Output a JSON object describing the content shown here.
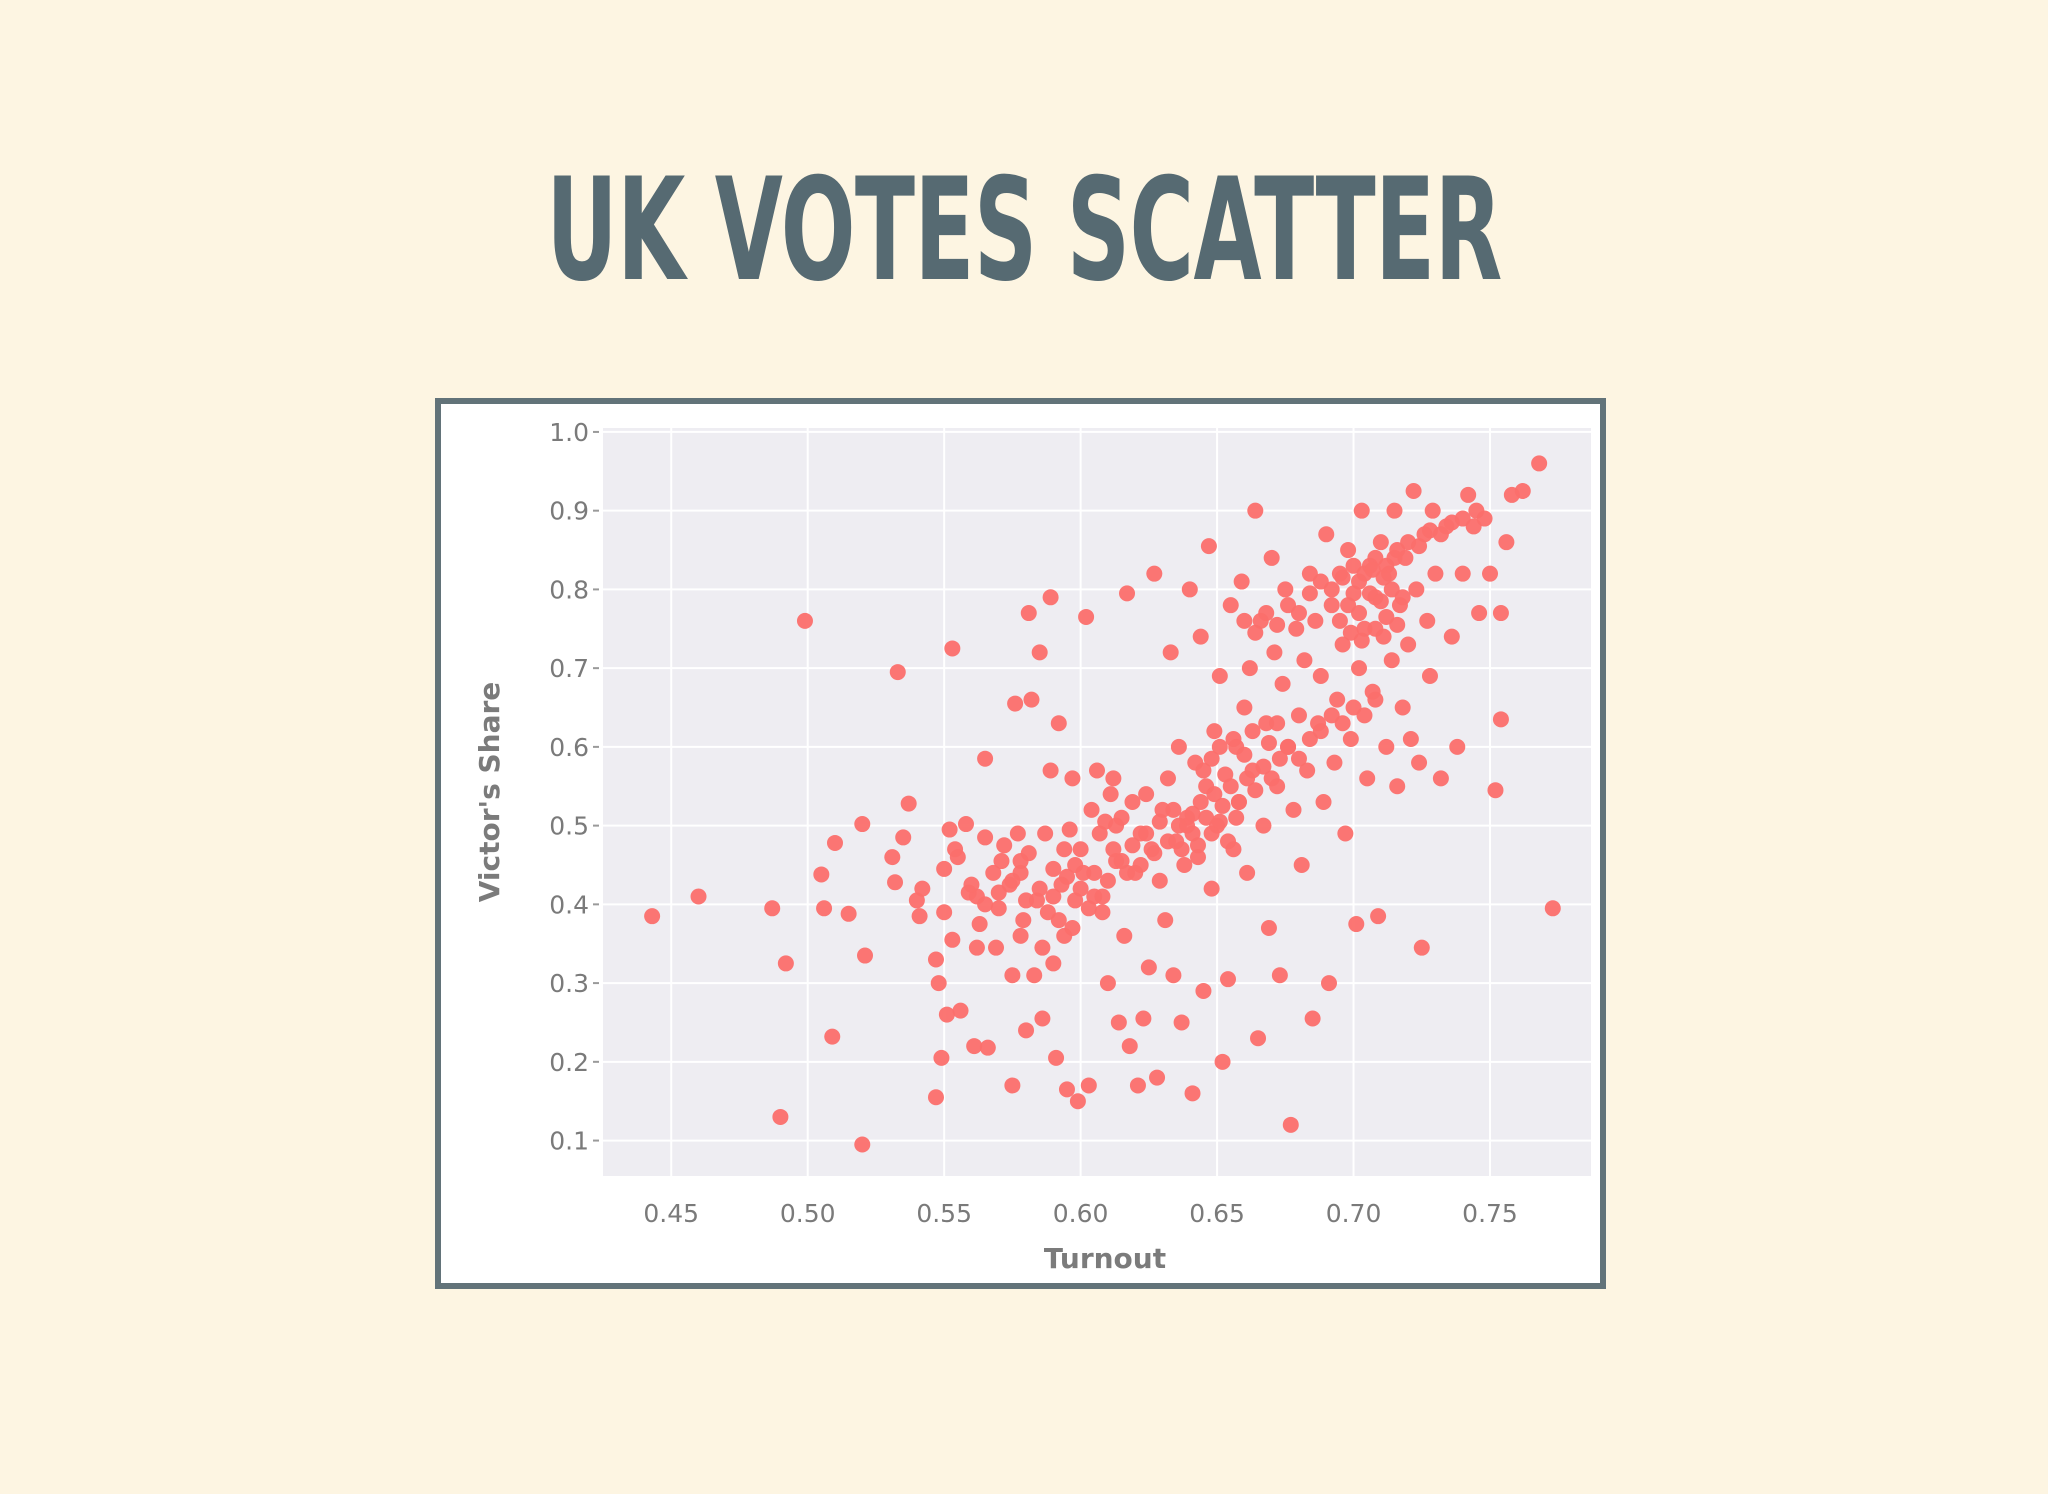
{
  "slide": {
    "title": "UK VOTES SCATTER"
  },
  "colors": {
    "background": "#fdf5e2",
    "title": "#566a72",
    "frame": "#627379",
    "plot_bg": "#eeedf2",
    "marker": "#fb6f6c"
  },
  "chart_data": {
    "type": "scatter",
    "title": "",
    "xlabel": "Turnout",
    "ylabel": "Victor's Share",
    "xlim": [
      0.425,
      0.787
    ],
    "ylim": [
      0.055,
      1.005
    ],
    "xticks": [
      "0.45",
      "0.50",
      "0.55",
      "0.60",
      "0.65",
      "0.70",
      "0.75"
    ],
    "yticks": [
      "0.1",
      "0.2",
      "0.3",
      "0.4",
      "0.5",
      "0.6",
      "0.7",
      "0.8",
      "0.9",
      "1.0"
    ],
    "grid": true,
    "legend": "none",
    "points": [
      [
        0.443,
        0.385
      ],
      [
        0.46,
        0.41
      ],
      [
        0.487,
        0.395
      ],
      [
        0.49,
        0.13
      ],
      [
        0.492,
        0.325
      ],
      [
        0.499,
        0.76
      ],
      [
        0.505,
        0.438
      ],
      [
        0.506,
        0.395
      ],
      [
        0.509,
        0.232
      ],
      [
        0.51,
        0.478
      ],
      [
        0.515,
        0.388
      ],
      [
        0.52,
        0.502
      ],
      [
        0.52,
        0.095
      ],
      [
        0.521,
        0.335
      ],
      [
        0.531,
        0.46
      ],
      [
        0.532,
        0.428
      ],
      [
        0.533,
        0.695
      ],
      [
        0.535,
        0.485
      ],
      [
        0.537,
        0.528
      ],
      [
        0.54,
        0.405
      ],
      [
        0.541,
        0.385
      ],
      [
        0.542,
        0.42
      ],
      [
        0.547,
        0.33
      ],
      [
        0.547,
        0.155
      ],
      [
        0.548,
        0.3
      ],
      [
        0.549,
        0.205
      ],
      [
        0.55,
        0.445
      ],
      [
        0.55,
        0.39
      ],
      [
        0.551,
        0.26
      ],
      [
        0.552,
        0.495
      ],
      [
        0.553,
        0.725
      ],
      [
        0.553,
        0.355
      ],
      [
        0.554,
        0.47
      ],
      [
        0.555,
        0.46
      ],
      [
        0.556,
        0.265
      ],
      [
        0.558,
        0.502
      ],
      [
        0.559,
        0.415
      ],
      [
        0.561,
        0.22
      ],
      [
        0.562,
        0.41
      ],
      [
        0.562,
        0.345
      ],
      [
        0.563,
        0.375
      ],
      [
        0.565,
        0.585
      ],
      [
        0.565,
        0.485
      ],
      [
        0.566,
        0.218
      ],
      [
        0.568,
        0.44
      ],
      [
        0.569,
        0.345
      ],
      [
        0.57,
        0.395
      ],
      [
        0.571,
        0.455
      ],
      [
        0.572,
        0.475
      ],
      [
        0.574,
        0.425
      ],
      [
        0.575,
        0.31
      ],
      [
        0.575,
        0.17
      ],
      [
        0.576,
        0.655
      ],
      [
        0.577,
        0.49
      ],
      [
        0.578,
        0.44
      ],
      [
        0.578,
        0.36
      ],
      [
        0.579,
        0.38
      ],
      [
        0.58,
        0.24
      ],
      [
        0.581,
        0.465
      ],
      [
        0.581,
        0.77
      ],
      [
        0.582,
        0.66
      ],
      [
        0.583,
        0.31
      ],
      [
        0.584,
        0.405
      ],
      [
        0.585,
        0.72
      ],
      [
        0.586,
        0.255
      ],
      [
        0.587,
        0.49
      ],
      [
        0.588,
        0.39
      ],
      [
        0.589,
        0.79
      ],
      [
        0.589,
        0.57
      ],
      [
        0.59,
        0.445
      ],
      [
        0.59,
        0.325
      ],
      [
        0.591,
        0.205
      ],
      [
        0.592,
        0.63
      ],
      [
        0.593,
        0.425
      ],
      [
        0.594,
        0.36
      ],
      [
        0.595,
        0.165
      ],
      [
        0.596,
        0.495
      ],
      [
        0.597,
        0.56
      ],
      [
        0.598,
        0.405
      ],
      [
        0.599,
        0.15
      ],
      [
        0.6,
        0.47
      ],
      [
        0.601,
        0.44
      ],
      [
        0.602,
        0.765
      ],
      [
        0.603,
        0.17
      ],
      [
        0.604,
        0.52
      ],
      [
        0.605,
        0.41
      ],
      [
        0.606,
        0.57
      ],
      [
        0.607,
        0.49
      ],
      [
        0.608,
        0.39
      ],
      [
        0.609,
        0.505
      ],
      [
        0.61,
        0.3
      ],
      [
        0.611,
        0.54
      ],
      [
        0.612,
        0.56
      ],
      [
        0.613,
        0.455
      ],
      [
        0.614,
        0.25
      ],
      [
        0.615,
        0.51
      ],
      [
        0.616,
        0.36
      ],
      [
        0.617,
        0.795
      ],
      [
        0.618,
        0.22
      ],
      [
        0.619,
        0.53
      ],
      [
        0.62,
        0.44
      ],
      [
        0.621,
        0.17
      ],
      [
        0.622,
        0.49
      ],
      [
        0.623,
        0.255
      ],
      [
        0.624,
        0.54
      ],
      [
        0.625,
        0.32
      ],
      [
        0.626,
        0.47
      ],
      [
        0.627,
        0.82
      ],
      [
        0.628,
        0.18
      ],
      [
        0.629,
        0.43
      ],
      [
        0.63,
        0.52
      ],
      [
        0.631,
        0.38
      ],
      [
        0.632,
        0.56
      ],
      [
        0.633,
        0.72
      ],
      [
        0.634,
        0.31
      ],
      [
        0.635,
        0.48
      ],
      [
        0.636,
        0.6
      ],
      [
        0.637,
        0.25
      ],
      [
        0.638,
        0.45
      ],
      [
        0.639,
        0.51
      ],
      [
        0.64,
        0.8
      ],
      [
        0.641,
        0.16
      ],
      [
        0.642,
        0.58
      ],
      [
        0.643,
        0.46
      ],
      [
        0.644,
        0.74
      ],
      [
        0.645,
        0.29
      ],
      [
        0.646,
        0.55
      ],
      [
        0.647,
        0.855
      ],
      [
        0.648,
        0.42
      ],
      [
        0.649,
        0.62
      ],
      [
        0.65,
        0.5
      ],
      [
        0.651,
        0.69
      ],
      [
        0.652,
        0.2
      ],
      [
        0.653,
        0.565
      ],
      [
        0.654,
        0.305
      ],
      [
        0.655,
        0.78
      ],
      [
        0.656,
        0.47
      ],
      [
        0.657,
        0.6
      ],
      [
        0.658,
        0.53
      ],
      [
        0.659,
        0.81
      ],
      [
        0.66,
        0.65
      ],
      [
        0.661,
        0.44
      ],
      [
        0.662,
        0.7
      ],
      [
        0.663,
        0.57
      ],
      [
        0.664,
        0.9
      ],
      [
        0.665,
        0.23
      ],
      [
        0.666,
        0.76
      ],
      [
        0.667,
        0.5
      ],
      [
        0.668,
        0.63
      ],
      [
        0.669,
        0.37
      ],
      [
        0.67,
        0.84
      ],
      [
        0.671,
        0.72
      ],
      [
        0.672,
        0.55
      ],
      [
        0.673,
        0.31
      ],
      [
        0.674,
        0.68
      ],
      [
        0.675,
        0.8
      ],
      [
        0.676,
        0.6
      ],
      [
        0.677,
        0.12
      ],
      [
        0.678,
        0.52
      ],
      [
        0.679,
        0.75
      ],
      [
        0.68,
        0.64
      ],
      [
        0.681,
        0.45
      ],
      [
        0.682,
        0.71
      ],
      [
        0.683,
        0.57
      ],
      [
        0.684,
        0.82
      ],
      [
        0.685,
        0.255
      ],
      [
        0.686,
        0.76
      ],
      [
        0.687,
        0.63
      ],
      [
        0.688,
        0.69
      ],
      [
        0.689,
        0.53
      ],
      [
        0.69,
        0.87
      ],
      [
        0.691,
        0.3
      ],
      [
        0.692,
        0.78
      ],
      [
        0.693,
        0.58
      ],
      [
        0.694,
        0.66
      ],
      [
        0.695,
        0.82
      ],
      [
        0.696,
        0.73
      ],
      [
        0.697,
        0.49
      ],
      [
        0.698,
        0.85
      ],
      [
        0.699,
        0.61
      ],
      [
        0.7,
        0.795
      ],
      [
        0.701,
        0.375
      ],
      [
        0.702,
        0.7
      ],
      [
        0.703,
        0.9
      ],
      [
        0.704,
        0.75
      ],
      [
        0.705,
        0.56
      ],
      [
        0.706,
        0.83
      ],
      [
        0.707,
        0.67
      ],
      [
        0.708,
        0.79
      ],
      [
        0.709,
        0.385
      ],
      [
        0.71,
        0.86
      ],
      [
        0.711,
        0.74
      ],
      [
        0.712,
        0.6
      ],
      [
        0.713,
        0.82
      ],
      [
        0.714,
        0.71
      ],
      [
        0.715,
        0.9
      ],
      [
        0.716,
        0.55
      ],
      [
        0.717,
        0.78
      ],
      [
        0.718,
        0.65
      ],
      [
        0.719,
        0.84
      ],
      [
        0.72,
        0.73
      ],
      [
        0.721,
        0.61
      ],
      [
        0.722,
        0.925
      ],
      [
        0.723,
        0.8
      ],
      [
        0.724,
        0.58
      ],
      [
        0.725,
        0.345
      ],
      [
        0.726,
        0.87
      ],
      [
        0.727,
        0.76
      ],
      [
        0.728,
        0.69
      ],
      [
        0.729,
        0.9
      ],
      [
        0.73,
        0.82
      ],
      [
        0.732,
        0.56
      ],
      [
        0.734,
        0.88
      ],
      [
        0.736,
        0.74
      ],
      [
        0.738,
        0.6
      ],
      [
        0.74,
        0.82
      ],
      [
        0.742,
        0.92
      ],
      [
        0.744,
        0.88
      ],
      [
        0.746,
        0.77
      ],
      [
        0.748,
        0.89
      ],
      [
        0.75,
        0.82
      ],
      [
        0.752,
        0.545
      ],
      [
        0.754,
        0.635
      ],
      [
        0.754,
        0.77
      ],
      [
        0.756,
        0.86
      ],
      [
        0.758,
        0.92
      ],
      [
        0.762,
        0.925
      ],
      [
        0.768,
        0.96
      ],
      [
        0.773,
        0.395
      ],
      [
        0.613,
        0.5
      ],
      [
        0.619,
        0.475
      ],
      [
        0.624,
        0.49
      ],
      [
        0.629,
        0.505
      ],
      [
        0.634,
        0.52
      ],
      [
        0.639,
        0.5
      ],
      [
        0.644,
        0.53
      ],
      [
        0.646,
        0.51
      ],
      [
        0.649,
        0.54
      ],
      [
        0.652,
        0.525
      ],
      [
        0.655,
        0.55
      ],
      [
        0.658,
        0.53
      ],
      [
        0.661,
        0.56
      ],
      [
        0.664,
        0.545
      ],
      [
        0.667,
        0.575
      ],
      [
        0.67,
        0.56
      ],
      [
        0.673,
        0.585
      ],
      [
        0.676,
        0.6
      ],
      [
        0.68,
        0.585
      ],
      [
        0.684,
        0.61
      ],
      [
        0.688,
        0.62
      ],
      [
        0.692,
        0.64
      ],
      [
        0.696,
        0.63
      ],
      [
        0.7,
        0.65
      ],
      [
        0.704,
        0.64
      ],
      [
        0.708,
        0.66
      ],
      [
        0.622,
        0.45
      ],
      [
        0.627,
        0.465
      ],
      [
        0.632,
        0.48
      ],
      [
        0.637,
        0.47
      ],
      [
        0.641,
        0.49
      ],
      [
        0.643,
        0.475
      ],
      [
        0.636,
        0.5
      ],
      [
        0.641,
        0.515
      ],
      [
        0.648,
        0.49
      ],
      [
        0.651,
        0.505
      ],
      [
        0.654,
        0.48
      ],
      [
        0.657,
        0.51
      ],
      [
        0.645,
        0.57
      ],
      [
        0.648,
        0.585
      ],
      [
        0.651,
        0.6
      ],
      [
        0.656,
        0.61
      ],
      [
        0.66,
        0.59
      ],
      [
        0.663,
        0.62
      ],
      [
        0.669,
        0.605
      ],
      [
        0.672,
        0.63
      ],
      [
        0.66,
        0.76
      ],
      [
        0.664,
        0.745
      ],
      [
        0.668,
        0.77
      ],
      [
        0.672,
        0.755
      ],
      [
        0.676,
        0.78
      ],
      [
        0.68,
        0.77
      ],
      [
        0.684,
        0.795
      ],
      [
        0.688,
        0.81
      ],
      [
        0.692,
        0.8
      ],
      [
        0.696,
        0.815
      ],
      [
        0.7,
        0.83
      ],
      [
        0.704,
        0.82
      ],
      [
        0.708,
        0.84
      ],
      [
        0.712,
        0.83
      ],
      [
        0.716,
        0.85
      ],
      [
        0.72,
        0.86
      ],
      [
        0.724,
        0.855
      ],
      [
        0.728,
        0.875
      ],
      [
        0.732,
        0.87
      ],
      [
        0.736,
        0.885
      ],
      [
        0.74,
        0.89
      ],
      [
        0.745,
        0.9
      ],
      [
        0.698,
        0.78
      ],
      [
        0.702,
        0.77
      ],
      [
        0.706,
        0.795
      ],
      [
        0.71,
        0.785
      ],
      [
        0.714,
        0.8
      ],
      [
        0.718,
        0.79
      ],
      [
        0.702,
        0.81
      ],
      [
        0.707,
        0.825
      ],
      [
        0.711,
        0.815
      ],
      [
        0.715,
        0.84
      ],
      [
        0.695,
        0.76
      ],
      [
        0.699,
        0.745
      ],
      [
        0.703,
        0.735
      ],
      [
        0.708,
        0.75
      ],
      [
        0.712,
        0.765
      ],
      [
        0.716,
        0.755
      ],
      [
        0.585,
        0.42
      ],
      [
        0.59,
        0.41
      ],
      [
        0.595,
        0.435
      ],
      [
        0.6,
        0.42
      ],
      [
        0.605,
        0.44
      ],
      [
        0.61,
        0.43
      ],
      [
        0.615,
        0.455
      ],
      [
        0.58,
        0.405
      ],
      [
        0.575,
        0.43
      ],
      [
        0.57,
        0.415
      ],
      [
        0.598,
        0.45
      ],
      [
        0.603,
        0.395
      ],
      [
        0.608,
        0.41
      ],
      [
        0.612,
        0.47
      ],
      [
        0.617,
        0.44
      ],
      [
        0.578,
        0.455
      ],
      [
        0.565,
        0.4
      ],
      [
        0.56,
        0.425
      ],
      [
        0.592,
        0.38
      ],
      [
        0.597,
        0.37
      ],
      [
        0.586,
        0.345
      ],
      [
        0.594,
        0.47
      ]
    ]
  }
}
